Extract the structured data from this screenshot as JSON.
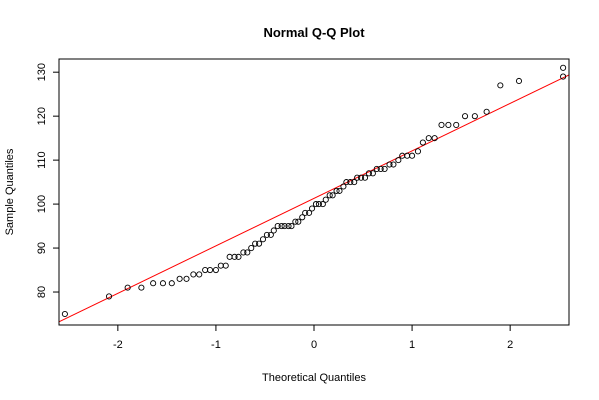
{
  "chart_data": {
    "type": "scatter",
    "title": "Normal Q-Q Plot",
    "xlabel": "Theoretical Quantiles",
    "ylabel": "Sample Quantiles",
    "xlim": [
      -2.6,
      2.6
    ],
    "ylim": [
      72.5,
      133
    ],
    "xticks": [
      -2,
      -1,
      0,
      1,
      2
    ],
    "yticks": [
      80,
      90,
      100,
      110,
      120,
      130
    ],
    "grid": false,
    "reference_line": {
      "color": "#ff0000",
      "slope": 10.8,
      "intercept": 101.3
    },
    "point_color": "#000000",
    "x": [
      -2.54,
      -2.09,
      -1.9,
      -1.76,
      -1.64,
      -1.54,
      -1.45,
      -1.37,
      -1.3,
      -1.23,
      -1.17,
      -1.11,
      -1.06,
      -1.0,
      -0.95,
      -0.9,
      -0.86,
      -0.81,
      -0.77,
      -0.72,
      -0.68,
      -0.64,
      -0.6,
      -0.56,
      -0.52,
      -0.48,
      -0.44,
      -0.41,
      -0.37,
      -0.33,
      -0.3,
      -0.26,
      -0.23,
      -0.19,
      -0.16,
      -0.12,
      -0.09,
      -0.05,
      -0.02,
      0.02,
      0.05,
      0.09,
      0.12,
      0.16,
      0.19,
      0.23,
      0.26,
      0.3,
      0.33,
      0.37,
      0.41,
      0.44,
      0.48,
      0.52,
      0.56,
      0.6,
      0.64,
      0.68,
      0.72,
      0.77,
      0.81,
      0.86,
      0.9,
      0.95,
      1.0,
      1.06,
      1.11,
      1.17,
      1.23,
      1.3,
      1.37,
      1.45,
      1.54,
      1.64,
      1.76,
      1.9,
      2.09,
      2.54
    ],
    "y": [
      75,
      79,
      81,
      81,
      82,
      82,
      82,
      83,
      83,
      84,
      84,
      85,
      85,
      85,
      86,
      86,
      88,
      88,
      88,
      89,
      89,
      90,
      91,
      91,
      92,
      93,
      93,
      94,
      95,
      95,
      95,
      95,
      95,
      96,
      96,
      97,
      98,
      98,
      99,
      100,
      100,
      100,
      101,
      102,
      102,
      103,
      103,
      104,
      105,
      105,
      105,
      106,
      106,
      106,
      107,
      107,
      108,
      108,
      108,
      109,
      109,
      110,
      111,
      111,
      111,
      112,
      114,
      115,
      115,
      118,
      118,
      118,
      120,
      120,
      121,
      127,
      128,
      129
    ],
    "extra_points": {
      "x": [
        2.54
      ],
      "y": [
        131
      ]
    }
  }
}
